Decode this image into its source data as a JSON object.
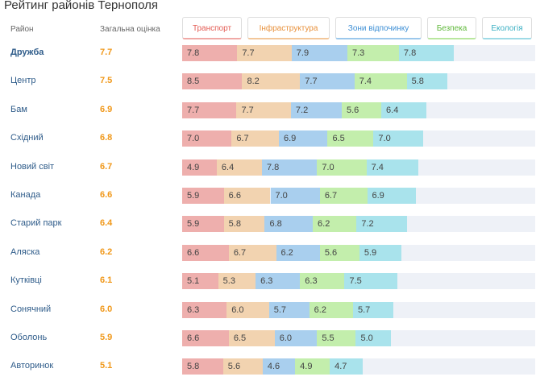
{
  "title": "Рейтинг районів Тернополя",
  "headers": {
    "district": "Район",
    "overall": "Загальна оцінка"
  },
  "chart_data": {
    "type": "bar",
    "stacked": true,
    "orientation": "horizontal",
    "title": "Рейтинг районів Тернополя",
    "categories": [
      "Дружба",
      "Центр",
      "Бам",
      "Східний",
      "Новий світ",
      "Канада",
      "Старий парк",
      "Аляска",
      "Кутківці",
      "Сонячний",
      "Оболонь",
      "Авторинок"
    ],
    "overall": [
      "7.7",
      "7.5",
      "6.9",
      "6.8",
      "6.7",
      "6.6",
      "6.4",
      "6.2",
      "6.1",
      "6.0",
      "5.9",
      "5.1"
    ],
    "series": [
      {
        "name": "Транспорт",
        "color": "#eeafad",
        "border": "#f0a9a6",
        "text": "#e35a52",
        "values": [
          7.8,
          8.5,
          7.7,
          7.0,
          4.9,
          5.9,
          5.9,
          6.6,
          5.1,
          6.3,
          6.6,
          5.8
        ]
      },
      {
        "name": "Інфраструктура",
        "color": "#f2d3b0",
        "border": "#f3c79a",
        "text": "#e8913c",
        "values": [
          7.7,
          8.2,
          7.7,
          6.7,
          6.4,
          6.6,
          5.8,
          6.7,
          5.3,
          6.0,
          6.5,
          5.6
        ]
      },
      {
        "name": "Зони відпочинку",
        "color": "#a9cfee",
        "border": "#9cc8ec",
        "text": "#3e8fd5",
        "values": [
          7.9,
          7.7,
          7.2,
          6.9,
          7.8,
          7.0,
          6.8,
          6.2,
          6.3,
          5.7,
          6.0,
          4.6
        ]
      },
      {
        "name": "Безпека",
        "color": "#c3eeac",
        "border": "#b9e79f",
        "text": "#5fb83a",
        "values": [
          7.3,
          7.4,
          5.6,
          6.5,
          7.0,
          6.7,
          6.2,
          5.6,
          6.3,
          6.2,
          5.5,
          4.9
        ]
      },
      {
        "name": "Екологія",
        "color": "#a9e3ec",
        "border": "#9fdbe6",
        "text": "#3aafc3",
        "values": [
          7.8,
          5.8,
          6.4,
          7.0,
          7.4,
          6.9,
          7.2,
          5.9,
          7.5,
          5.7,
          5.0,
          4.7
        ]
      }
    ],
    "bold_first_row": true
  }
}
